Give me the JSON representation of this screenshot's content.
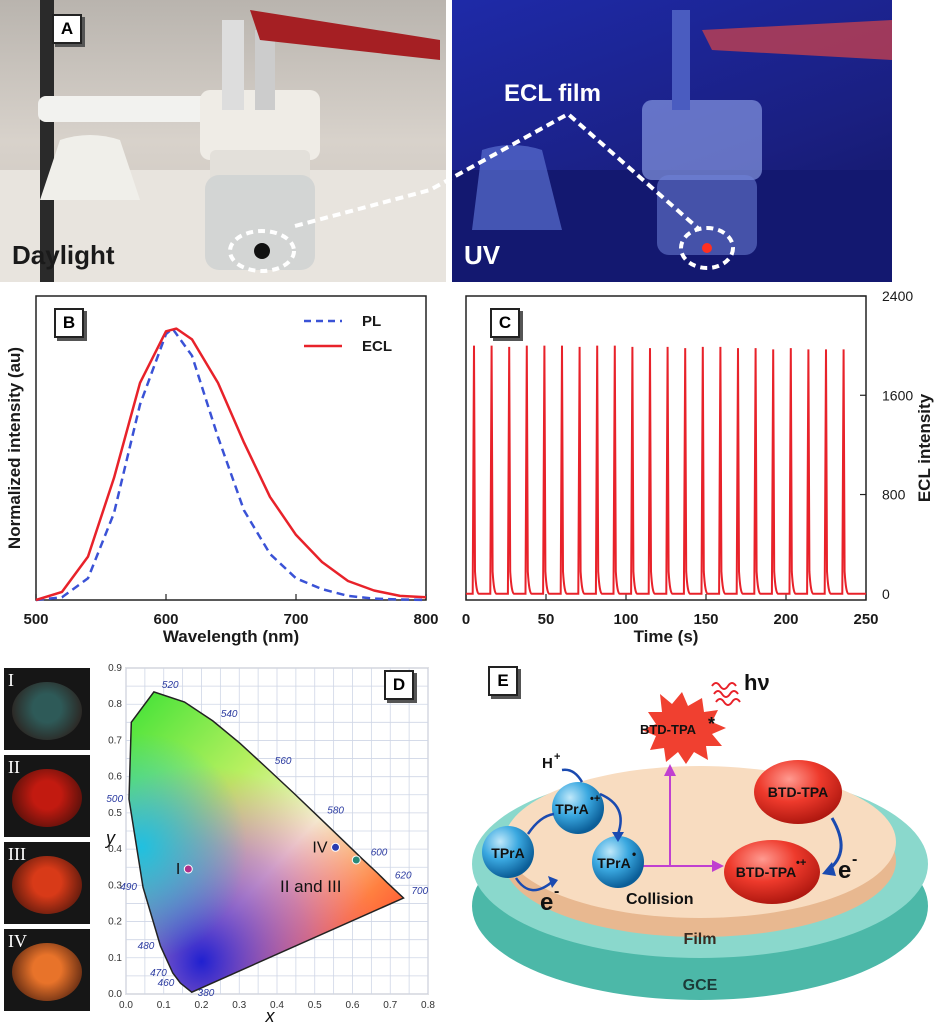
{
  "panels": {
    "a": "A",
    "b": "B",
    "c": "C",
    "d": "D",
    "e": "E"
  },
  "photos": {
    "left_label": "Daylight",
    "right_label": "UV",
    "film_label": "ECL film"
  },
  "chart_data": [
    {
      "type": "line",
      "panel": "B",
      "xlabel": "Wavelength (nm)",
      "ylabel": "Normalized intensity (au)",
      "xlim": [
        500,
        800
      ],
      "xticks": [
        "500",
        "600",
        "700",
        "800"
      ],
      "legend_position": "top-right",
      "series": [
        {
          "name": "PL",
          "style": "dashed",
          "color": "#3a52d6",
          "peak": 605,
          "x": [
            500,
            520,
            540,
            560,
            580,
            600,
            605,
            620,
            640,
            660,
            680,
            700,
            720,
            740,
            760,
            780,
            800
          ],
          "y": [
            0.0,
            0.01,
            0.08,
            0.32,
            0.72,
            0.98,
            1.0,
            0.9,
            0.6,
            0.33,
            0.17,
            0.08,
            0.04,
            0.015,
            0.005,
            0.002,
            0.0
          ]
        },
        {
          "name": "ECL",
          "style": "solid",
          "color": "#e8222a",
          "peak": 608,
          "x": [
            500,
            520,
            540,
            560,
            580,
            600,
            608,
            620,
            640,
            660,
            680,
            700,
            720,
            740,
            760,
            780,
            800
          ],
          "y": [
            0.0,
            0.03,
            0.16,
            0.45,
            0.8,
            0.99,
            1.0,
            0.96,
            0.8,
            0.58,
            0.38,
            0.24,
            0.14,
            0.07,
            0.035,
            0.015,
            0.01
          ]
        }
      ]
    },
    {
      "type": "line",
      "panel": "C",
      "xlabel": "Time (s)",
      "ylabel": "ECL intensity",
      "xlim": [
        0,
        250
      ],
      "ylim": [
        -50,
        2400
      ],
      "xticks": [
        "0",
        "50",
        "100",
        "150",
        "200",
        "250"
      ],
      "yticks": [
        "0",
        "800",
        "1600",
        "2400"
      ],
      "series": [
        {
          "name": "",
          "color": "#e8222a",
          "pulse_times": [
            5,
            16,
            27,
            38,
            49,
            60,
            71,
            82,
            93,
            104,
            115,
            126,
            137,
            148,
            159,
            170,
            181,
            192,
            203,
            214,
            225,
            236
          ],
          "pulse_heights": [
            2000,
            2000,
            1990,
            2000,
            2000,
            2000,
            1990,
            2000,
            2000,
            1990,
            1980,
            1990,
            1980,
            1990,
            1990,
            1980,
            1980,
            1970,
            1980,
            1970,
            1970,
            1970
          ],
          "baseline": 0
        }
      ]
    },
    {
      "type": "scatter",
      "panel": "D",
      "xlabel": "x",
      "ylabel": "y",
      "xlim": [
        0.0,
        0.8
      ],
      "ylim": [
        0.0,
        0.9
      ],
      "xticks": [
        "0.0",
        "0.1",
        "0.2",
        "0.3",
        "0.4",
        "0.5",
        "0.6",
        "0.7",
        "0.8"
      ],
      "yticks": [
        "0.0",
        "0.1",
        "0.2",
        "0.3",
        "0.4",
        "0.5",
        "0.6",
        "0.7",
        "0.8",
        "0.9"
      ],
      "wavelength_labels": [
        "380",
        "460",
        "470",
        "480",
        "490",
        "500",
        "520",
        "540",
        "560",
        "580",
        "600",
        "620",
        "700"
      ],
      "points": [
        {
          "label": "I",
          "x": 0.165,
          "y": 0.345,
          "color": "#b0308a"
        },
        {
          "label": "IV",
          "x": 0.555,
          "y": 0.405,
          "color": "#2a3cb0"
        },
        {
          "label": "",
          "x": 0.61,
          "y": 0.37,
          "color": "#2a8a78"
        }
      ],
      "group_label": "II and III"
    }
  ],
  "swatches": [
    "I",
    "II",
    "III",
    "IV"
  ],
  "swatch_colors": [
    "#2e5a58",
    "#c21a10",
    "#d83a18",
    "#e8732a"
  ],
  "scheme": {
    "hv": "hν",
    "excited": "BTD-TPA",
    "excited_mark": "*",
    "h_plus": "H",
    "h_plus_sup": "+",
    "tpra_radical_cation": "TPrA",
    "tpra_radical_cation_sup": "•+",
    "tpra": "TPrA",
    "tpra_radical": "TPrA",
    "tpra_radical_sup": "•",
    "e_left": "e",
    "e_left_sup": "-",
    "btd_tpa": "BTD-TPA",
    "btd_tpa_cation": "BTD-TPA",
    "btd_tpa_cation_sup": "•+",
    "e_right": "e",
    "e_right_sup": "-",
    "collision": "Collision",
    "film": "Film",
    "gce": "GCE"
  }
}
